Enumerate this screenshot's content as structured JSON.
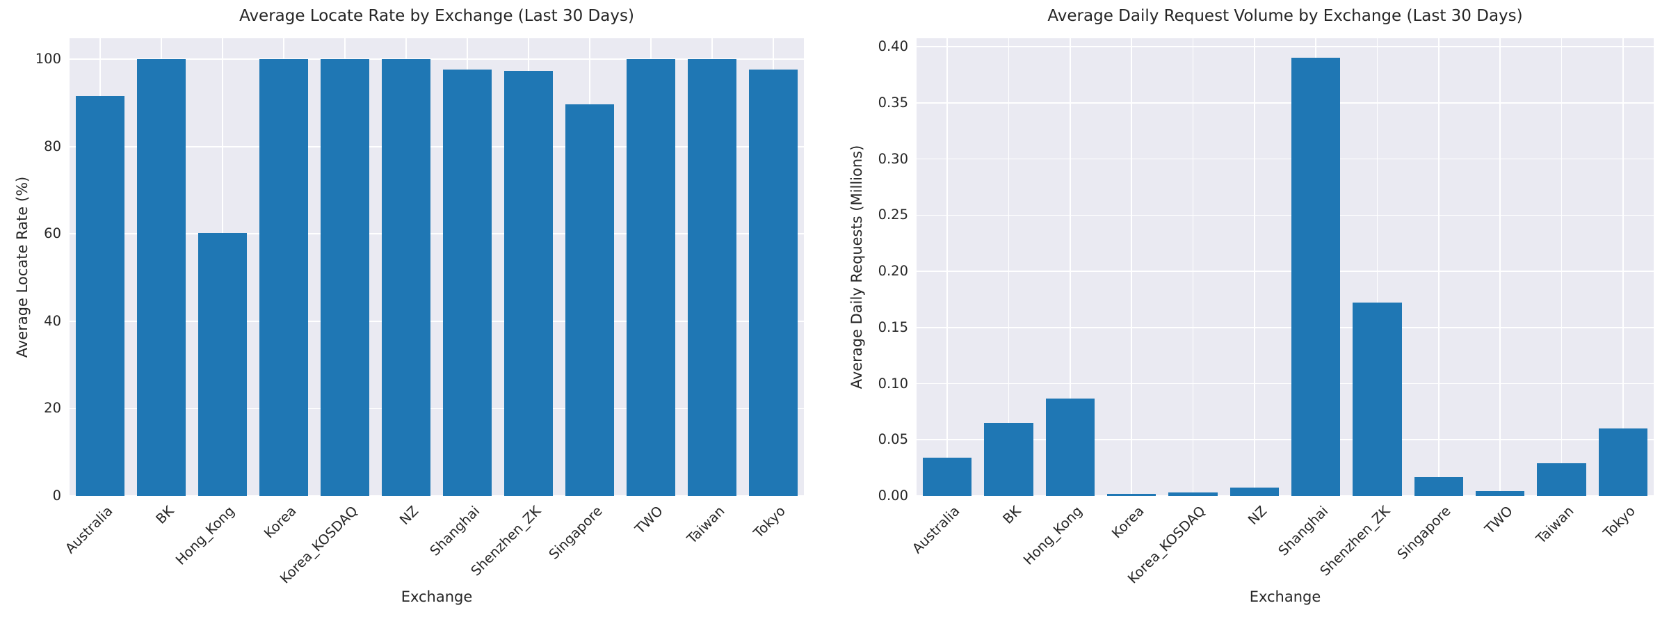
{
  "figure": {
    "background": "#ffffff",
    "axes_background": "#eaeaf2",
    "grid_color": "#ffffff",
    "text_color": "#262626",
    "bar_color": "#1f77b4"
  },
  "chart_data": [
    {
      "type": "bar",
      "title": "Average Locate Rate by Exchange (Last 30 Days)",
      "xlabel": "Exchange",
      "ylabel": "Average Locate Rate (%)",
      "categories": [
        "Australia",
        "BK",
        "Hong_Kong",
        "Korea",
        "Korea_KOSDAQ",
        "NZ",
        "Shanghai",
        "Shenzhen_ZK",
        "Singapore",
        "TWO",
        "Taiwan",
        "Tokyo"
      ],
      "values": [
        91.6,
        100.0,
        60.2,
        100.0,
        100.0,
        100.0,
        97.6,
        97.3,
        89.6,
        100.0,
        100.0,
        97.7
      ],
      "yticks": [
        0,
        20,
        40,
        60,
        80,
        100
      ],
      "ytick_labels": [
        "0",
        "20",
        "40",
        "60",
        "80",
        "100"
      ],
      "ylim": [
        0,
        104.8
      ],
      "grid": true,
      "legend": null,
      "bar_color": "#1f77b4",
      "x_tick_rotation_deg": 45
    },
    {
      "type": "bar",
      "title": "Average Daily Request Volume by Exchange (Last 30 Days)",
      "xlabel": "Exchange",
      "ylabel": "Average Daily Requests (Millions)",
      "categories": [
        "Australia",
        "BK",
        "Hong_Kong",
        "Korea",
        "Korea_KOSDAQ",
        "NZ",
        "Shanghai",
        "Shenzhen_ZK",
        "Singapore",
        "TWO",
        "Taiwan",
        "Tokyo"
      ],
      "values": [
        0.034,
        0.065,
        0.087,
        0.002,
        0.003,
        0.0075,
        0.39,
        0.172,
        0.017,
        0.0045,
        0.029,
        0.06
      ],
      "yticks": [
        0,
        0.05,
        0.1,
        0.15,
        0.2,
        0.25,
        0.3,
        0.35,
        0.4
      ],
      "ytick_labels": [
        "0.00",
        "0.05",
        "0.10",
        "0.15",
        "0.20",
        "0.25",
        "0.30",
        "0.35",
        "0.40"
      ],
      "ylim": [
        0,
        0.4075
      ],
      "grid": true,
      "legend": null,
      "bar_color": "#1f77b4",
      "x_tick_rotation_deg": 45
    }
  ]
}
